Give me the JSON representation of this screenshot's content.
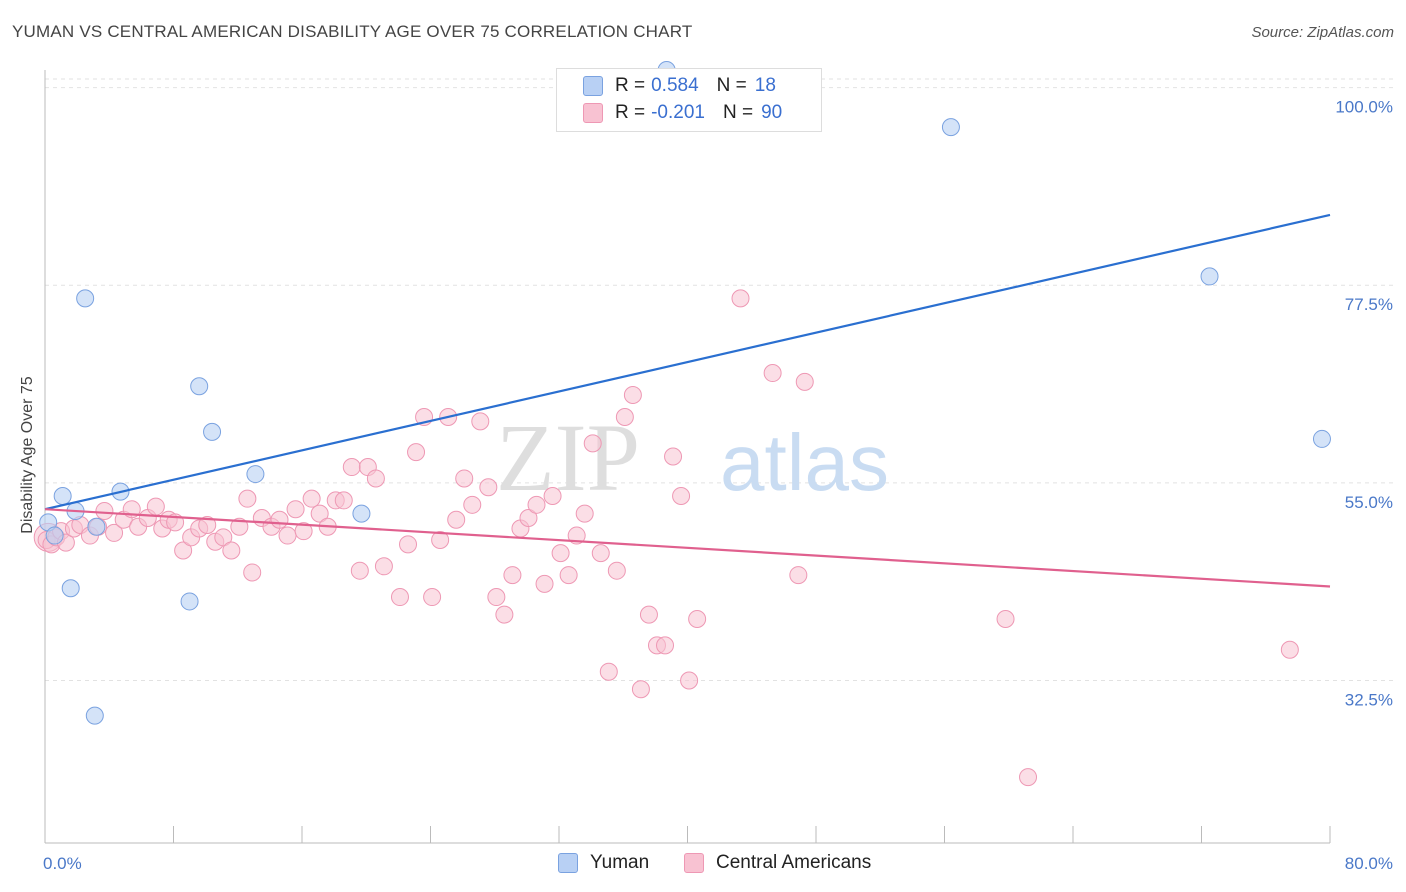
{
  "title": "YUMAN VS CENTRAL AMERICAN DISABILITY AGE OVER 75 CORRELATION CHART",
  "source": "Source: ZipAtlas.com",
  "watermark": {
    "zip": "ZIP",
    "atlas": "atlas"
  },
  "legend": {
    "series1": {
      "r_label": "R = ",
      "r_value": "0.584",
      "n_label": "N = ",
      "n_value": "18"
    },
    "series2": {
      "r_label": "R = ",
      "r_value": "-0.201",
      "n_label": "N = ",
      "n_value": "90"
    }
  },
  "bottom_legend": {
    "series1": "Yuman",
    "series2": "Central Americans"
  },
  "colors": {
    "yuman_fill": "#b8d0f4",
    "yuman_stroke": "#7aa2e0",
    "yuman_line": "#2a6fd0",
    "ca_fill": "#f8c2d2",
    "ca_stroke": "#ee98b4",
    "ca_line": "#e0608e",
    "tick_text": "#4a78c8",
    "grid": "#e2e2e2"
  },
  "chart_data": {
    "type": "scatter",
    "title": "YUMAN VS CENTRAL AMERICAN DISABILITY AGE OVER 75 CORRELATION CHART",
    "xlabel": "",
    "ylabel": "Disability Age Over 75",
    "xlim": [
      0,
      80
    ],
    "ylim": [
      14,
      102
    ],
    "x_tick_labels": [
      "0.0%",
      "80.0%"
    ],
    "y_ticks": [
      32.5,
      55.0,
      77.5,
      100.0
    ],
    "y_tick_labels": [
      "32.5%",
      "55.0%",
      "77.5%",
      "100.0%"
    ],
    "grid": true,
    "series": [
      {
        "name": "Yuman",
        "points": [
          [
            0.2,
            50.5
          ],
          [
            0.6,
            49.0
          ],
          [
            1.1,
            53.5
          ],
          [
            1.6,
            43.0
          ],
          [
            1.9,
            51.8
          ],
          [
            2.5,
            76.0
          ],
          [
            3.1,
            28.5
          ],
          [
            3.2,
            50.0
          ],
          [
            4.7,
            54.0
          ],
          [
            9.0,
            41.5
          ],
          [
            9.6,
            66.0
          ],
          [
            10.4,
            60.8
          ],
          [
            13.1,
            56.0
          ],
          [
            19.7,
            51.5
          ],
          [
            38.7,
            102.0
          ],
          [
            56.4,
            95.5
          ],
          [
            72.5,
            78.5
          ],
          [
            79.5,
            60.0
          ]
        ],
        "trend": {
          "x": [
            0,
            80
          ],
          "y": [
            52.0,
            85.5
          ]
        },
        "r": 0.584,
        "n": 18
      },
      {
        "name": "Central Americans",
        "points": [
          [
            0.1,
            48.5
          ],
          [
            0.4,
            48.0
          ],
          [
            0.7,
            48.8
          ],
          [
            1.0,
            49.5
          ],
          [
            1.3,
            48.2
          ],
          [
            1.8,
            49.8
          ],
          [
            2.2,
            50.2
          ],
          [
            2.8,
            49.0
          ],
          [
            3.3,
            50.0
          ],
          [
            3.7,
            51.8
          ],
          [
            4.3,
            49.3
          ],
          [
            4.9,
            50.8
          ],
          [
            5.4,
            52.0
          ],
          [
            5.8,
            50.0
          ],
          [
            6.4,
            51.0
          ],
          [
            6.9,
            52.3
          ],
          [
            7.3,
            49.8
          ],
          [
            7.7,
            50.8
          ],
          [
            8.1,
            50.5
          ],
          [
            8.6,
            47.3
          ],
          [
            9.1,
            48.8
          ],
          [
            9.6,
            49.8
          ],
          [
            10.1,
            50.2
          ],
          [
            10.6,
            48.3
          ],
          [
            11.1,
            48.8
          ],
          [
            11.6,
            47.3
          ],
          [
            12.1,
            50.0
          ],
          [
            12.6,
            53.2
          ],
          [
            12.9,
            44.8
          ],
          [
            13.5,
            51.0
          ],
          [
            14.1,
            50.0
          ],
          [
            14.6,
            50.8
          ],
          [
            15.1,
            49.0
          ],
          [
            15.6,
            52.0
          ],
          [
            16.1,
            49.5
          ],
          [
            16.6,
            53.2
          ],
          [
            17.1,
            51.5
          ],
          [
            17.6,
            50.0
          ],
          [
            18.1,
            53.0
          ],
          [
            18.6,
            53.0
          ],
          [
            19.1,
            56.8
          ],
          [
            19.6,
            45.0
          ],
          [
            20.1,
            56.8
          ],
          [
            20.6,
            55.5
          ],
          [
            21.1,
            45.5
          ],
          [
            22.1,
            42.0
          ],
          [
            22.6,
            48.0
          ],
          [
            23.1,
            58.5
          ],
          [
            23.6,
            62.5
          ],
          [
            24.1,
            42.0
          ],
          [
            24.6,
            48.5
          ],
          [
            25.1,
            62.5
          ],
          [
            25.6,
            50.8
          ],
          [
            26.1,
            55.5
          ],
          [
            26.6,
            52.5
          ],
          [
            27.1,
            62.0
          ],
          [
            27.6,
            54.5
          ],
          [
            28.1,
            42.0
          ],
          [
            28.6,
            40.0
          ],
          [
            29.1,
            44.5
          ],
          [
            29.6,
            49.8
          ],
          [
            30.1,
            51.0
          ],
          [
            30.6,
            52.5
          ],
          [
            31.1,
            43.5
          ],
          [
            31.6,
            53.5
          ],
          [
            32.1,
            47.0
          ],
          [
            32.6,
            44.5
          ],
          [
            33.1,
            49.0
          ],
          [
            33.6,
            51.5
          ],
          [
            34.1,
            59.5
          ],
          [
            34.6,
            47.0
          ],
          [
            35.1,
            33.5
          ],
          [
            35.6,
            45.0
          ],
          [
            36.1,
            62.5
          ],
          [
            36.6,
            65.0
          ],
          [
            37.1,
            31.5
          ],
          [
            37.6,
            40.0
          ],
          [
            38.1,
            36.5
          ],
          [
            38.6,
            36.5
          ],
          [
            39.1,
            58.0
          ],
          [
            39.6,
            53.5
          ],
          [
            40.1,
            32.5
          ],
          [
            40.6,
            39.5
          ],
          [
            43.3,
            76.0
          ],
          [
            45.3,
            67.5
          ],
          [
            46.9,
            44.5
          ],
          [
            47.3,
            66.5
          ],
          [
            59.8,
            39.5
          ],
          [
            61.2,
            21.5
          ],
          [
            77.5,
            36.0
          ]
        ],
        "trend": {
          "x": [
            0,
            80
          ],
          "y": [
            52.0,
            43.2
          ]
        },
        "r": -0.201,
        "n": 90
      }
    ]
  }
}
